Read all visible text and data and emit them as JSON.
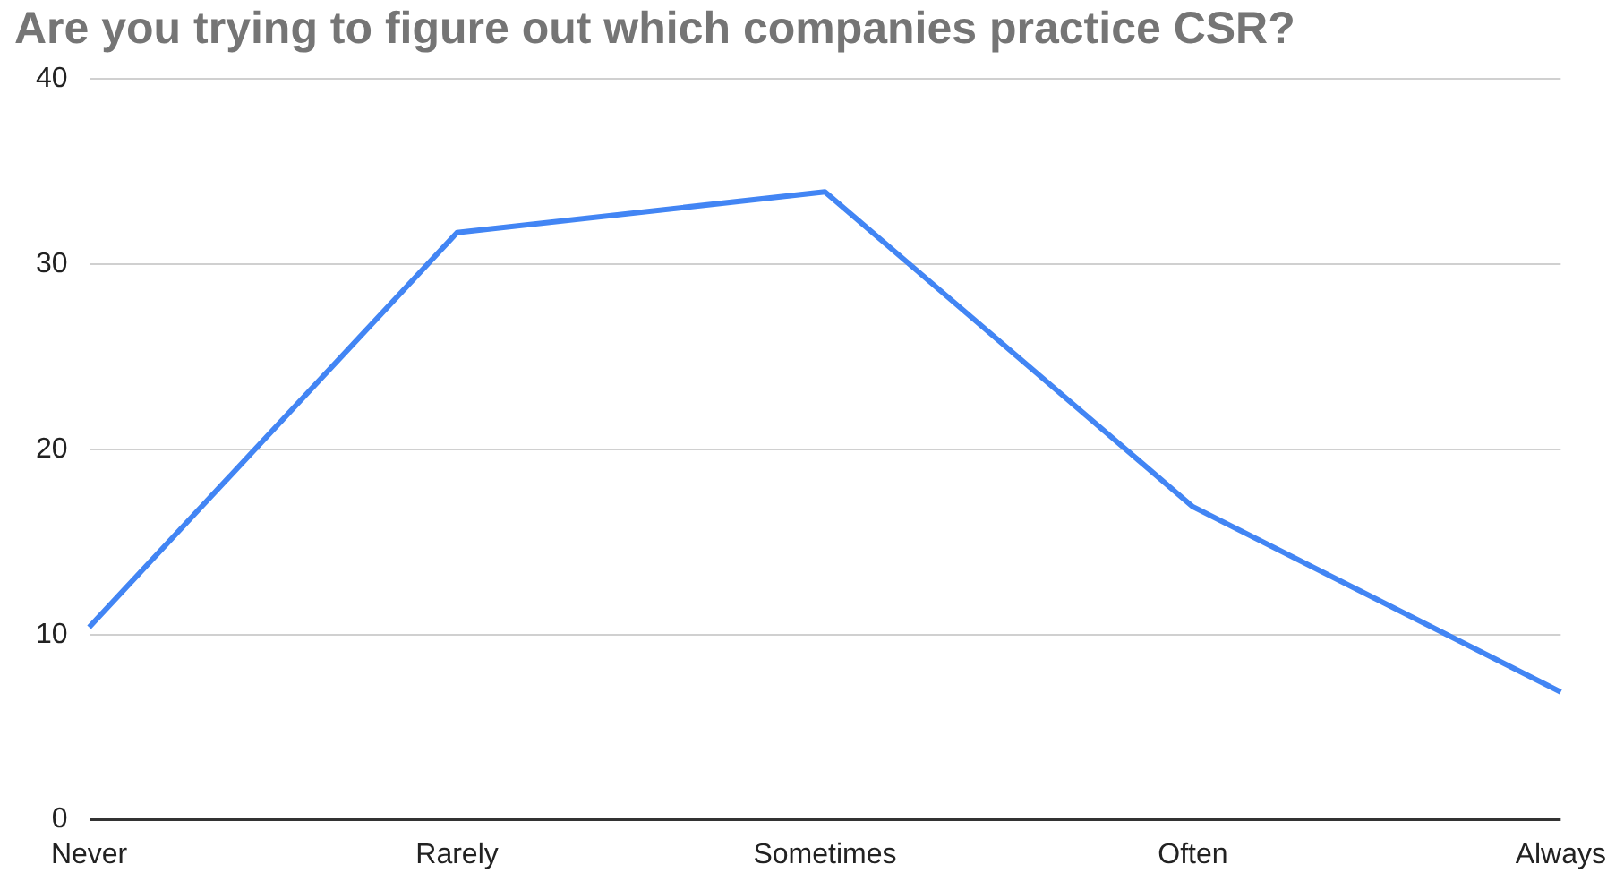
{
  "chart_data": {
    "type": "line",
    "title": "Are you trying to figure out which companies practice CSR?",
    "categories": [
      "Never",
      "Rarely",
      "Sometimes",
      "Often",
      "Always"
    ],
    "series": [
      {
        "color": "#4285f4",
        "values": [
          10.4,
          31.7,
          33.9,
          16.9,
          6.9
        ]
      }
    ],
    "ylim": [
      0,
      40
    ],
    "yticks": [
      0,
      10,
      20,
      30,
      40
    ],
    "grid": "y",
    "legend": false,
    "marker": "none",
    "line_style": "solid"
  }
}
